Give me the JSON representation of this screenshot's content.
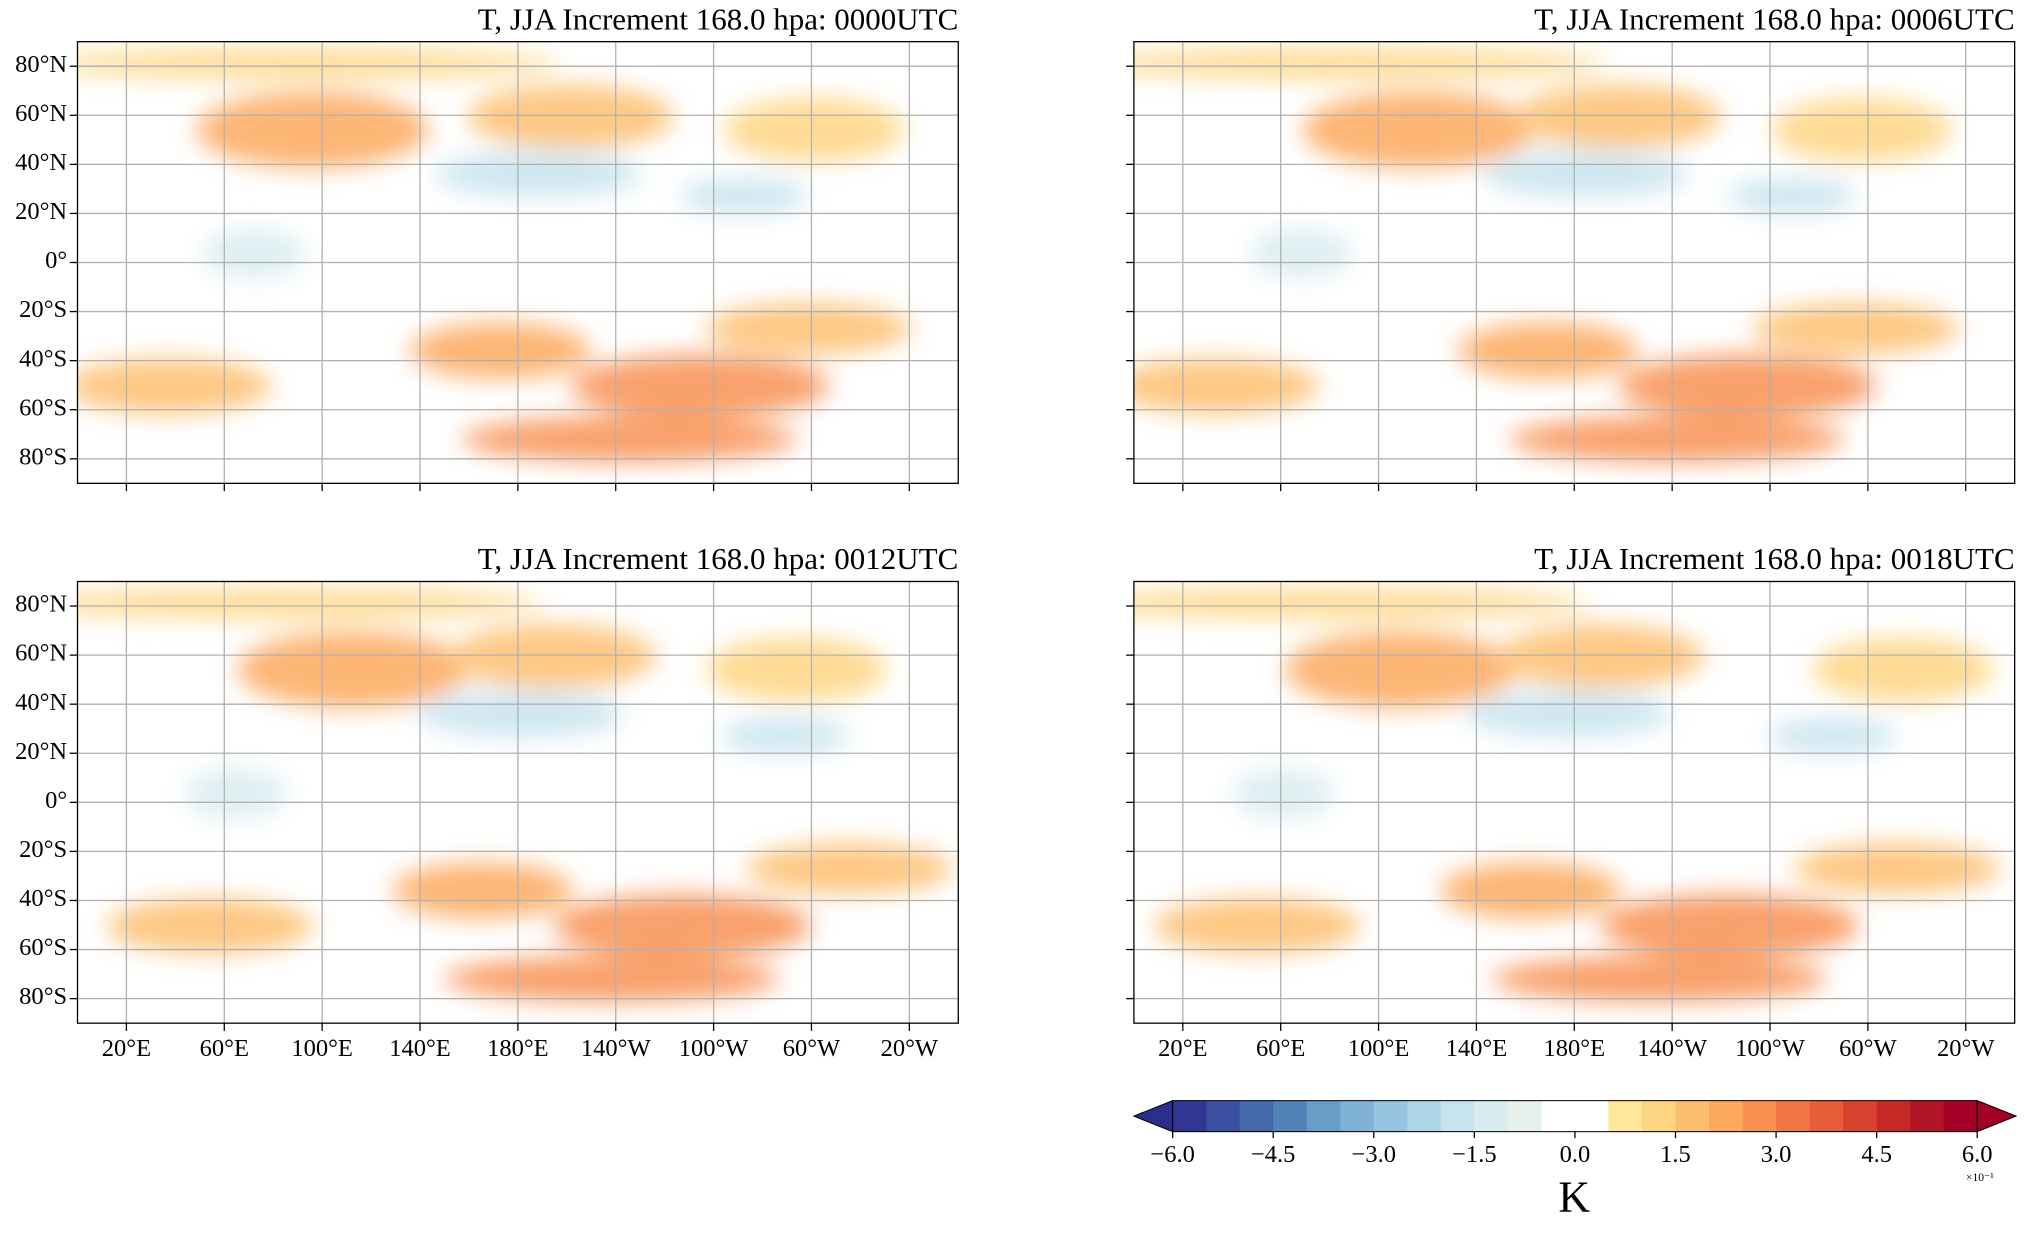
{
  "chart_data": {
    "type": "contour",
    "titles": [
      "T, JJA Increment 168.0 hpa: 0000UTC",
      "T, JJA Increment 168.0 hpa: 0006UTC",
      "T, JJA Increment 168.0 hpa: 0012UTC",
      "T, JJA Increment 168.0 hpa: 0018UTC"
    ],
    "xlim": [
      0,
      360
    ],
    "ylim": [
      -90,
      90
    ],
    "xticks": [
      {
        "value": 20,
        "label": "20°E"
      },
      {
        "value": 60,
        "label": "60°E"
      },
      {
        "value": 100,
        "label": "100°E"
      },
      {
        "value": 140,
        "label": "140°E"
      },
      {
        "value": 180,
        "label": "180°E"
      },
      {
        "value": -140,
        "label": "140°W"
      },
      {
        "value": -100,
        "label": "100°W"
      },
      {
        "value": -60,
        "label": "60°W"
      },
      {
        "value": -20,
        "label": "20°W"
      }
    ],
    "yticks": [
      {
        "value": 80,
        "label": "80°N"
      },
      {
        "value": 60,
        "label": "60°N"
      },
      {
        "value": 40,
        "label": "40°N"
      },
      {
        "value": 20,
        "label": "20°N"
      },
      {
        "value": 0,
        "label": "0°"
      },
      {
        "value": -20,
        "label": "20°S"
      },
      {
        "value": -40,
        "label": "40°S"
      },
      {
        "value": -60,
        "label": "60°S"
      },
      {
        "value": -80,
        "label": "80°S"
      }
    ],
    "grid": true,
    "colorbar": {
      "label": "K",
      "scale_label": "×10⁻¹",
      "lim": [
        -6,
        6
      ],
      "ticks": [
        {
          "value": -6,
          "label": "−6.0"
        },
        {
          "value": -4.5,
          "label": "−4.5"
        },
        {
          "value": -3,
          "label": "−3.0"
        },
        {
          "value": -1.5,
          "label": "−1.5"
        },
        {
          "value": 0,
          "label": "0.0"
        },
        1.5,
        {
          "value": 3,
          "label": "3.0"
        },
        4.5,
        {
          "value": 6,
          "label": "6.0"
        }
      ],
      "colors": [
        "#313695",
        "#3a4fa0",
        "#4568ab",
        "#5282b8",
        "#6a9cc8",
        "#80b1d6",
        "#97c4e0",
        "#afd5e8",
        "#c6e3ef",
        "#d9ecf0",
        "#e6f1ec",
        "#ffffff",
        "#ffffff",
        "#fee79a",
        "#fed582",
        "#fdbf6f",
        "#fca95d",
        "#f89152",
        "#f27747",
        "#e75d3a",
        "#d8422f",
        "#c52a27",
        "#b01425",
        "#a50026"
      ],
      "under_color": "#2b2f8c",
      "over_color": "#a50026"
    }
  }
}
